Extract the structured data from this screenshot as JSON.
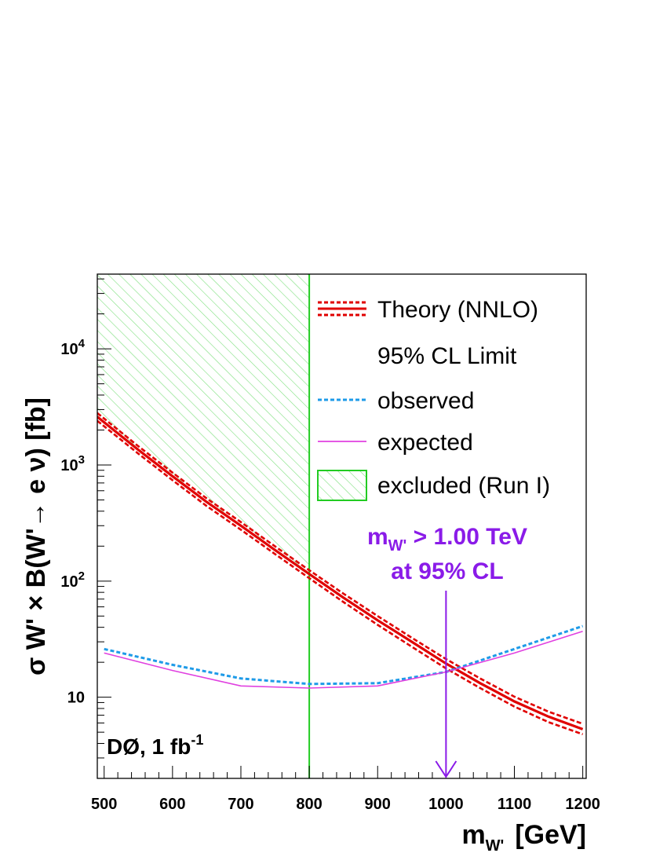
{
  "chart_data": {
    "type": "line",
    "xlabel": {
      "main": "m",
      "sub": "W'",
      "rest": "[GeV]"
    },
    "ylabel": "σ W' × B(W'→ e ν)  [fb]",
    "xlim": [
      490,
      1205
    ],
    "ylim": [
      2.0,
      44000
    ],
    "yscale": "log",
    "x_ticks": [
      500,
      600,
      700,
      800,
      900,
      1000,
      1100,
      1200
    ],
    "x_tick_labels": [
      "500",
      "600",
      "700",
      "800",
      "900",
      "1000",
      "1100",
      "1200"
    ],
    "y_ticks": [
      10,
      100,
      1000,
      10000
    ],
    "y_tick_labels": [
      {
        "base": "10",
        "exp": ""
      },
      {
        "base": "10",
        "exp": "2"
      },
      {
        "base": "10",
        "exp": "3"
      },
      {
        "base": "10",
        "exp": "4"
      }
    ],
    "series": [
      {
        "name": "Theory (NNLO)",
        "role": "central",
        "color": "#e00000",
        "x": [
          490,
          550,
          600,
          650,
          700,
          750,
          800,
          850,
          900,
          950,
          1000,
          1050,
          1100,
          1150,
          1200
        ],
        "y": [
          2600,
          1350,
          800,
          480,
          300,
          185,
          115,
          72,
          46,
          30,
          19.5,
          13.2,
          9.2,
          6.8,
          5.3
        ]
      },
      {
        "name": "theory upper band",
        "role": "band",
        "color": "#e00000",
        "x": [
          490,
          550,
          600,
          650,
          700,
          750,
          800,
          850,
          900,
          950,
          1000,
          1050,
          1100,
          1150,
          1200
        ],
        "y": [
          2800,
          1450,
          860,
          515,
          322,
          199,
          124,
          78,
          50,
          32.5,
          21.3,
          14.5,
          10.1,
          7.5,
          5.9
        ]
      },
      {
        "name": "theory lower band",
        "role": "band",
        "color": "#e00000",
        "x": [
          490,
          550,
          600,
          650,
          700,
          750,
          800,
          850,
          900,
          950,
          1000,
          1050,
          1100,
          1150,
          1200
        ],
        "y": [
          2400,
          1250,
          740,
          443,
          277,
          171,
          106,
          66,
          42,
          27.2,
          17.7,
          12,
          8.3,
          6.1,
          4.8
        ]
      },
      {
        "name": "observed",
        "color": "#1e9be8",
        "x": [
          500,
          600,
          700,
          800,
          900,
          1000,
          1100,
          1200
        ],
        "y": [
          26,
          19,
          14.5,
          13,
          13.2,
          16.5,
          26,
          41
        ]
      },
      {
        "name": "expected",
        "color": "#e040e0",
        "x": [
          500,
          600,
          700,
          800,
          900,
          1000,
          1100,
          1200
        ],
        "y": [
          24,
          17,
          12.5,
          12,
          12.5,
          16.5,
          24,
          37
        ]
      }
    ],
    "excluded_region": {
      "label": "excluded (Run I)",
      "x_max": 800,
      "color": "#22cc22"
    },
    "legend": {
      "placement": "top-right",
      "entries": [
        "Theory (NNLO)",
        "95% CL Limit",
        "observed",
        "expected",
        "excluded (Run I)"
      ]
    },
    "annotation": {
      "line1_main": "m",
      "line1_sub": "W'",
      "line1_rest": " > 1.00 TeV",
      "line2": "at 95% CL",
      "arrow_x": 1000
    },
    "experiment_label": {
      "main": "DØ, 1 fb",
      "sup": "-1"
    },
    "colors": {
      "frame": "#000000",
      "annotation": "#8a1be8"
    }
  }
}
